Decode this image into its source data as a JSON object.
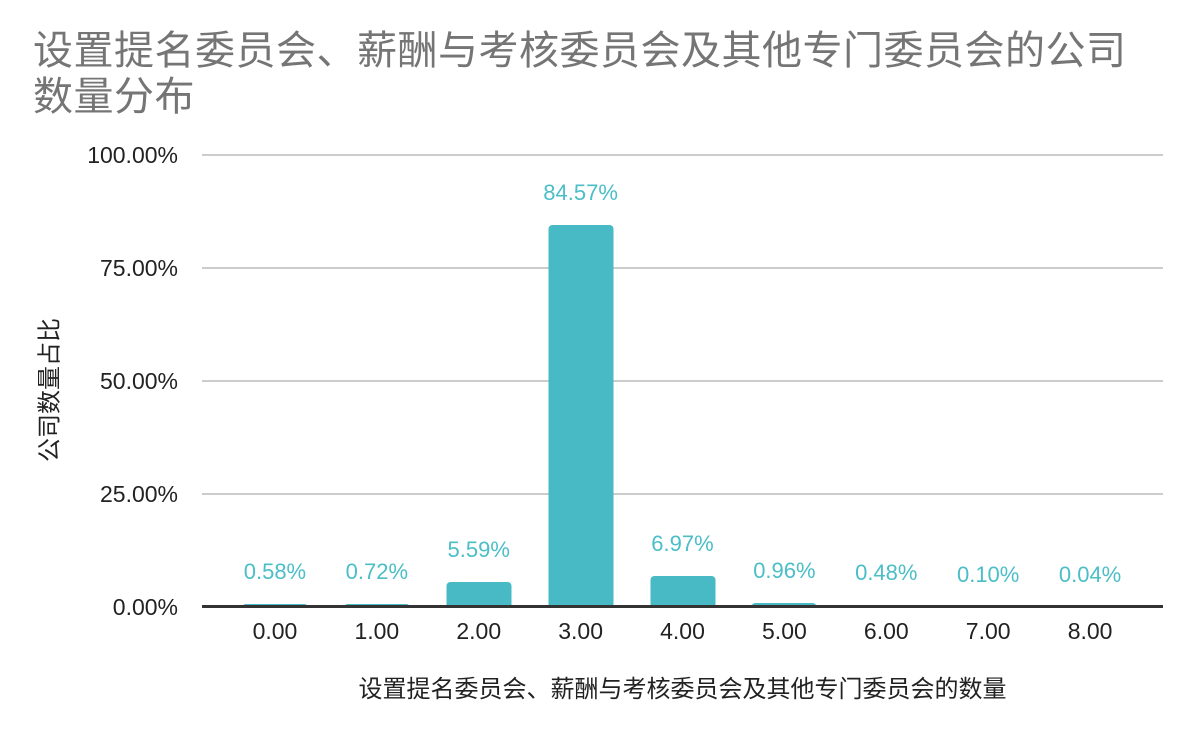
{
  "title": "设置提名委员会、薪酬与考核委员会及其他专门委员会的公司数量分布",
  "chart_data": {
    "type": "bar",
    "title": "设置提名委员会、薪酬与考核委员会及其他专门委员会的公司数量分布",
    "xlabel": "设置提名委员会、薪酬与考核委员会及其他专门委员会的数量",
    "ylabel": "公司数量占比",
    "categories": [
      "0.00",
      "1.00",
      "2.00",
      "3.00",
      "4.00",
      "5.00",
      "6.00",
      "7.00",
      "8.00"
    ],
    "values": [
      0.58,
      0.72,
      5.59,
      84.57,
      6.97,
      0.96,
      0.48,
      0.1,
      0.04
    ],
    "data_labels": [
      "0.58%",
      "0.72%",
      "5.59%",
      "84.57%",
      "6.97%",
      "0.96%",
      "0.48%",
      "0.10%",
      "0.04%"
    ],
    "y_ticks": [
      "0.00%",
      "25.00%",
      "50.00%",
      "75.00%",
      "100.00%"
    ],
    "y_tick_values": [
      0,
      25,
      50,
      75,
      100
    ],
    "ylim": [
      0,
      100
    ],
    "grid": true,
    "legend": "none",
    "colors": {
      "bar": "#48BAC5",
      "data_label": "#4BBEC7",
      "title_text": "#757575",
      "axis_text": "#222222",
      "gridline": "#cccccc",
      "baseline": "#333333",
      "background": "#ffffff"
    }
  }
}
